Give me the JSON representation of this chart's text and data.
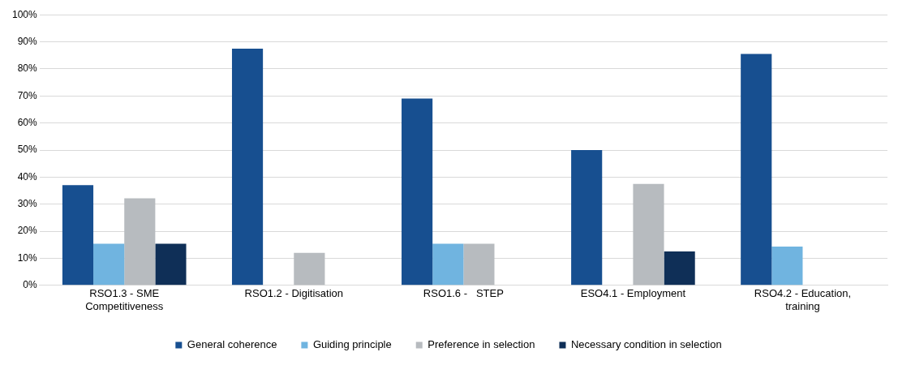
{
  "chart_data": {
    "type": "bar",
    "categories": [
      "RSO1.3 - SME Competitiveness",
      "RSO1.2 - Digitisation",
      "RSO1.6 -   STEP",
      "ESO4.1 - Employment",
      "RSO4.2 - Education, training"
    ],
    "series": [
      {
        "name": "General coherence",
        "color": "#174f90",
        "values": [
          37,
          87.5,
          69,
          50,
          85.5
        ]
      },
      {
        "name": "Guiding principle",
        "color": "#70b4e0",
        "values": [
          15.4,
          0,
          15.4,
          0,
          14.3
        ]
      },
      {
        "name": "Preference in selection",
        "color": "#b7bbbf",
        "values": [
          32.2,
          12,
          15.4,
          37.5,
          0
        ]
      },
      {
        "name": "Necessary condition in selection",
        "color": "#0f2f57",
        "values": [
          15.4,
          0,
          0,
          12.5,
          0
        ]
      }
    ],
    "ylim": [
      0,
      100
    ],
    "yticks": [
      {
        "value": 0,
        "label": "0%"
      },
      {
        "value": 10,
        "label": "10%"
      },
      {
        "value": 20,
        "label": "20%"
      },
      {
        "value": 30,
        "label": "30%"
      },
      {
        "value": 40,
        "label": "40%"
      },
      {
        "value": 50,
        "label": "50%"
      },
      {
        "value": 60,
        "label": "60%"
      },
      {
        "value": 70,
        "label": "70%"
      },
      {
        "value": 80,
        "label": "80%"
      },
      {
        "value": 90,
        "label": "90%"
      },
      {
        "value": 100,
        "label": "100%"
      }
    ],
    "grid": "y",
    "legend": "bottom"
  }
}
